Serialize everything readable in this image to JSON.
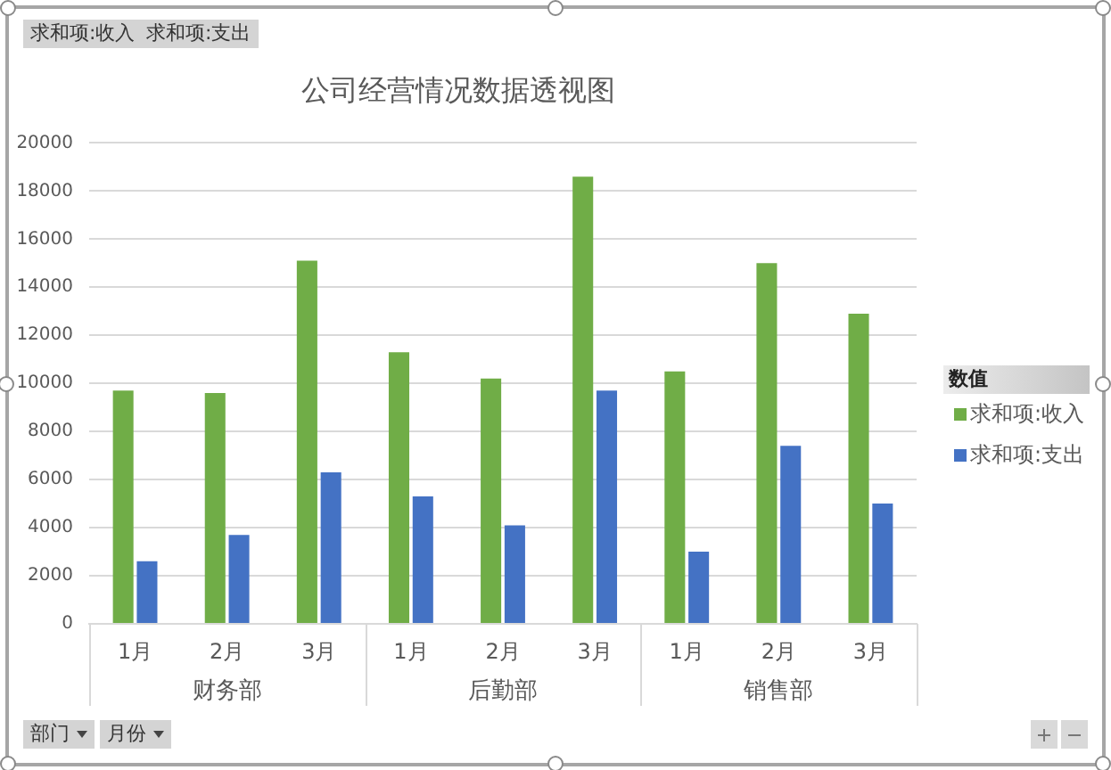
{
  "chart_data": {
    "type": "bar",
    "title": "公司经营情况数据透视图",
    "categories": [
      "1月",
      "2月",
      "3月",
      "1月",
      "2月",
      "3月",
      "1月",
      "2月",
      "3月"
    ],
    "series": [
      {
        "name": "求和项:收入",
        "color": "#70ad47",
        "values": [
          9700,
          9600,
          15100,
          11300,
          10200,
          18600,
          10500,
          15000,
          12900
        ]
      },
      {
        "name": "求和项:支出",
        "color": "#4472c4",
        "values": [
          2600,
          3700,
          6300,
          5300,
          4100,
          9700,
          3000,
          7400,
          5000
        ]
      }
    ],
    "ylim": [
      0,
      20000
    ],
    "yticks": [
      0,
      2000,
      4000,
      6000,
      8000,
      10000,
      12000,
      14000,
      16000,
      18000,
      20000
    ],
    "grid": "y",
    "legend": "right",
    "legend_title": "数值",
    "annotations": [
      "求和项:收入",
      "求和项:支出",
      "财务部",
      "后勤部",
      "销售部",
      "部门",
      "月份"
    ]
  }
}
